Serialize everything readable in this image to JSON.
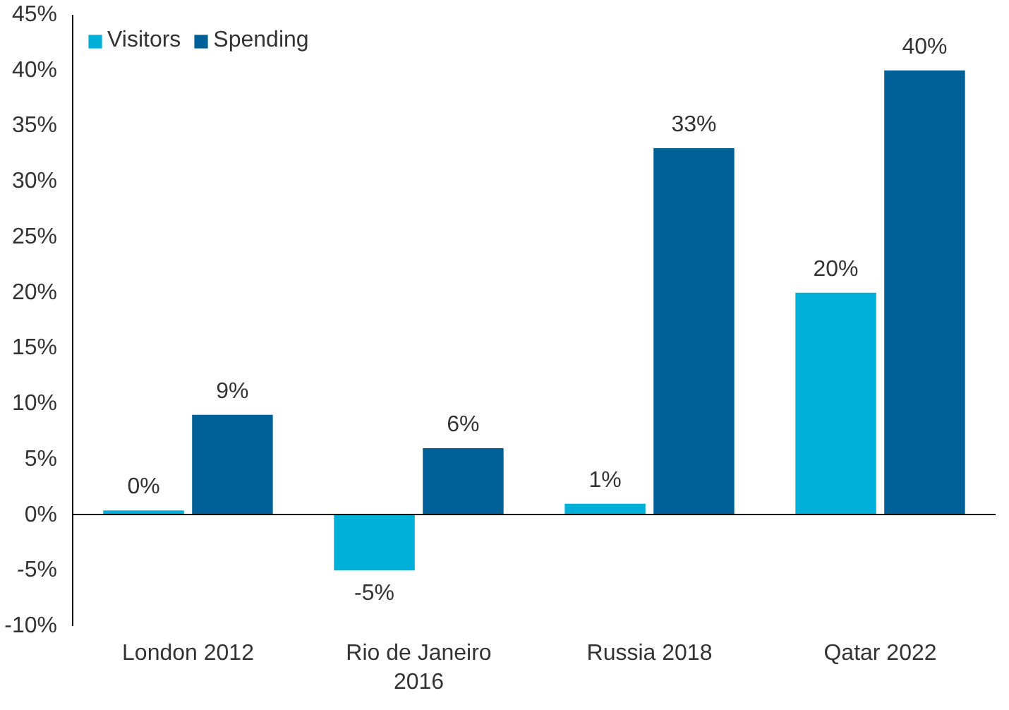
{
  "chart_data": {
    "type": "bar",
    "categories": [
      "London 2012",
      "Rio de Janeiro\n2016",
      "Russia 2018",
      "Qatar 2022"
    ],
    "series": [
      {
        "name": "Visitors",
        "color": "#00b0d8",
        "values": [
          0.4,
          -5,
          1,
          20
        ],
        "value_labels": [
          "0%",
          "-5%",
          "1%",
          "20%"
        ]
      },
      {
        "name": "Spending",
        "color": "#006098",
        "values": [
          9,
          6,
          33,
          40
        ],
        "value_labels": [
          "9%",
          "6%",
          "33%",
          "40%"
        ]
      }
    ],
    "ylim": [
      -10,
      45
    ],
    "yticks": [
      {
        "value": -10,
        "label": "-10%"
      },
      {
        "value": -5,
        "label": "-5%"
      },
      {
        "value": 0,
        "label": "0%"
      },
      {
        "value": 5,
        "label": "5%"
      },
      {
        "value": 10,
        "label": "10%"
      },
      {
        "value": 15,
        "label": "15%"
      },
      {
        "value": 20,
        "label": "20%"
      },
      {
        "value": 25,
        "label": "25%"
      },
      {
        "value": 30,
        "label": "30%"
      },
      {
        "value": 35,
        "label": "35%"
      },
      {
        "value": 40,
        "label": "40%"
      },
      {
        "value": 45,
        "label": "45%"
      }
    ],
    "legend": "top left"
  }
}
